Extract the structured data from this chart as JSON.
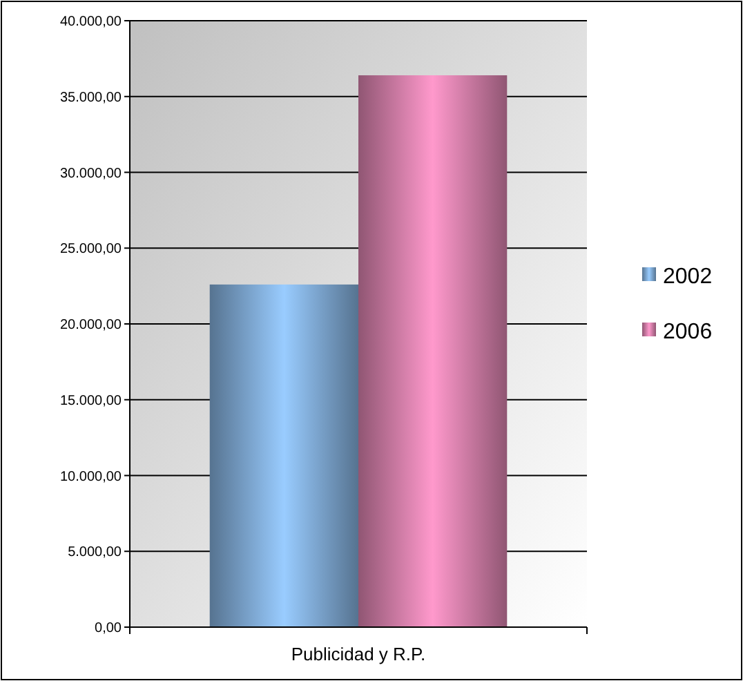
{
  "chart_data": {
    "type": "bar",
    "categories": [
      "Publicidad y R.P."
    ],
    "series": [
      {
        "name": "2002",
        "color": "#99ccff",
        "values": [
          22600
        ]
      },
      {
        "name": "2006",
        "color": "#ff99cc",
        "values": [
          36400
        ]
      }
    ],
    "ylim": [
      0,
      40000
    ],
    "yticks": [
      {
        "value": 0,
        "label": "0,00"
      },
      {
        "value": 5000,
        "label": "5.000,00"
      },
      {
        "value": 10000,
        "label": "10.000,00"
      },
      {
        "value": 15000,
        "label": "15.000,00"
      },
      {
        "value": 20000,
        "label": "20.000,00"
      },
      {
        "value": 25000,
        "label": "25.000,00"
      },
      {
        "value": 30000,
        "label": "30.000,00"
      },
      {
        "value": 35000,
        "label": "35.000,00"
      },
      {
        "value": 40000,
        "label": "40.000,00"
      }
    ],
    "grid": "y",
    "legend": "right"
  }
}
